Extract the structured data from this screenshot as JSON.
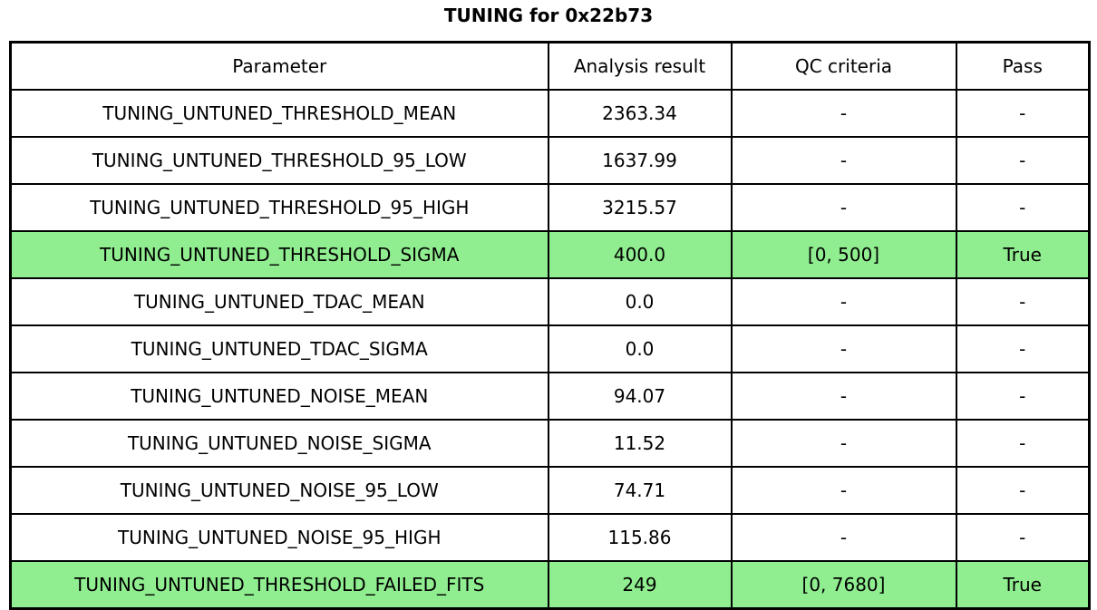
{
  "title": "TUNING for 0x22b73",
  "colors": {
    "highlight": "#90EE90",
    "border": "#000000",
    "background": "#ffffff"
  },
  "table": {
    "headers": {
      "parameter": "Parameter",
      "result": "Analysis result",
      "qc": "QC criteria",
      "pass": "Pass"
    },
    "rows": [
      {
        "parameter": "TUNING_UNTUNED_THRESHOLD_MEAN",
        "result": "2363.34",
        "qc": "-",
        "pass": "-",
        "highlight": false
      },
      {
        "parameter": "TUNING_UNTUNED_THRESHOLD_95_LOW",
        "result": "1637.99",
        "qc": "-",
        "pass": "-",
        "highlight": false
      },
      {
        "parameter": "TUNING_UNTUNED_THRESHOLD_95_HIGH",
        "result": "3215.57",
        "qc": "-",
        "pass": "-",
        "highlight": false
      },
      {
        "parameter": "TUNING_UNTUNED_THRESHOLD_SIGMA",
        "result": "400.0",
        "qc": "[0, 500]",
        "pass": "True",
        "highlight": true
      },
      {
        "parameter": "TUNING_UNTUNED_TDAC_MEAN",
        "result": "0.0",
        "qc": "-",
        "pass": "-",
        "highlight": false
      },
      {
        "parameter": "TUNING_UNTUNED_TDAC_SIGMA",
        "result": "0.0",
        "qc": "-",
        "pass": "-",
        "highlight": false
      },
      {
        "parameter": "TUNING_UNTUNED_NOISE_MEAN",
        "result": "94.07",
        "qc": "-",
        "pass": "-",
        "highlight": false
      },
      {
        "parameter": "TUNING_UNTUNED_NOISE_SIGMA",
        "result": "11.52",
        "qc": "-",
        "pass": "-",
        "highlight": false
      },
      {
        "parameter": "TUNING_UNTUNED_NOISE_95_LOW",
        "result": "74.71",
        "qc": "-",
        "pass": "-",
        "highlight": false
      },
      {
        "parameter": "TUNING_UNTUNED_NOISE_95_HIGH",
        "result": "115.86",
        "qc": "-",
        "pass": "-",
        "highlight": false
      },
      {
        "parameter": "TUNING_UNTUNED_THRESHOLD_FAILED_FITS",
        "result": "249",
        "qc": "[0, 7680]",
        "pass": "True",
        "highlight": true
      }
    ]
  },
  "chart_data": {
    "type": "table",
    "title": "TUNING for 0x22b73",
    "columns": [
      "Parameter",
      "Analysis result",
      "QC criteria",
      "Pass"
    ],
    "rows": [
      [
        "TUNING_UNTUNED_THRESHOLD_MEAN",
        "2363.34",
        "-",
        "-"
      ],
      [
        "TUNING_UNTUNED_THRESHOLD_95_LOW",
        "1637.99",
        "-",
        "-"
      ],
      [
        "TUNING_UNTUNED_THRESHOLD_95_HIGH",
        "3215.57",
        "-",
        "-"
      ],
      [
        "TUNING_UNTUNED_THRESHOLD_SIGMA",
        "400.0",
        "[0, 500]",
        "True"
      ],
      [
        "TUNING_UNTUNED_TDAC_MEAN",
        "0.0",
        "-",
        "-"
      ],
      [
        "TUNING_UNTUNED_TDAC_SIGMA",
        "0.0",
        "-",
        "-"
      ],
      [
        "TUNING_UNTUNED_NOISE_MEAN",
        "94.07",
        "-",
        "-"
      ],
      [
        "TUNING_UNTUNED_NOISE_SIGMA",
        "11.52",
        "-",
        "-"
      ],
      [
        "TUNING_UNTUNED_NOISE_95_LOW",
        "74.71",
        "-",
        "-"
      ],
      [
        "TUNING_UNTUNED_NOISE_95_HIGH",
        "115.86",
        "-",
        "-"
      ],
      [
        "TUNING_UNTUNED_THRESHOLD_FAILED_FITS",
        "249",
        "[0, 7680]",
        "True"
      ]
    ],
    "highlighted_row_indices": [
      3,
      10
    ],
    "highlight_meaning": "row has QC criteria applied and passed"
  }
}
